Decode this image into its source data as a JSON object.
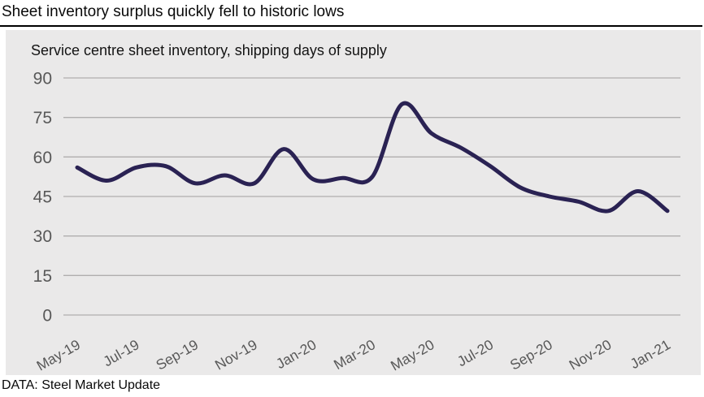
{
  "page": {
    "title": "Sheet inventory surplus quickly fell to historic lows",
    "footer": "DATA: Steel Market Update"
  },
  "panel": {
    "subtitle": "Service centre sheet inventory, shipping days of supply"
  },
  "colors": {
    "line": "#2a2253",
    "panel_bg": "#eae9e9",
    "grid": "#b0aeae",
    "axis_text": "#585858",
    "title_text": "#0a0a0a",
    "rule": "#000000"
  },
  "chart_data": {
    "type": "line",
    "title": "Service centre sheet inventory, shipping days of supply",
    "x": [
      "May-19",
      "Jun-19",
      "Jul-19",
      "Aug-19",
      "Sep-19",
      "Oct-19",
      "Nov-19",
      "Dec-19",
      "Jan-20",
      "Feb-20",
      "Mar-20",
      "Apr-20",
      "May-20",
      "Jun-20",
      "Jul-20",
      "Aug-20",
      "Sep-20",
      "Oct-20",
      "Nov-20",
      "Dec-20",
      "Jan-21"
    ],
    "values": [
      56,
      51,
      56,
      56.5,
      50,
      53,
      50,
      63,
      51.5,
      52,
      52.5,
      80,
      69,
      63.5,
      56.5,
      48.5,
      45,
      43,
      39.5,
      47,
      39.5
    ],
    "x_tick_labels": [
      "May-19",
      "Jul-19",
      "Sep-19",
      "Nov-19",
      "Jan-20",
      "Mar-20",
      "May-20",
      "Jul-20",
      "Sep-20",
      "Nov-20",
      "Jan-21"
    ],
    "x_tick_every": 2,
    "y_ticks": [
      0,
      15,
      30,
      45,
      60,
      75,
      90
    ],
    "ylim": [
      0,
      90
    ],
    "grid": "horizontal",
    "legend": "none",
    "smoothing": "catmull-rom",
    "series_name": "shipping days of supply"
  }
}
